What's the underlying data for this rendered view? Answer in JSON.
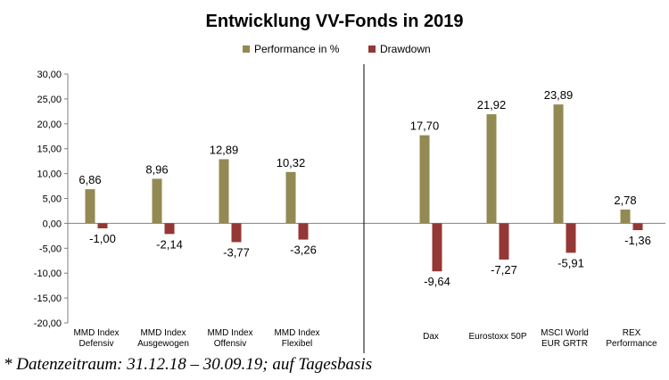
{
  "chart_data": {
    "type": "bar",
    "title": "Entwicklung VV-Fonds in 2019",
    "categories": [
      [
        "MMD Index",
        "Defensiv"
      ],
      [
        "MMD Index",
        "Ausgewogen"
      ],
      [
        "MMD Index",
        "Offensiv"
      ],
      [
        "MMD Index",
        "Flexibel"
      ],
      [
        "Dax"
      ],
      [
        "Eurostoxx 50P"
      ],
      [
        "MSCI World",
        "EUR GRTR"
      ],
      [
        "REX",
        "Performance"
      ]
    ],
    "series": [
      {
        "name": "Performance in %",
        "color": "#938953",
        "values": [
          6.86,
          8.96,
          12.89,
          10.32,
          17.7,
          21.92,
          23.89,
          2.78
        ]
      },
      {
        "name": "Drawdown",
        "color": "#953735",
        "values": [
          -1.0,
          -2.14,
          -3.77,
          -3.26,
          -9.64,
          -7.27,
          -5.91,
          -1.36
        ]
      }
    ],
    "value_labels": [
      [
        "6,86",
        "8,96",
        "12,89",
        "10,32",
        "17,70",
        "21,92",
        "23,89",
        "2,78"
      ],
      [
        "-1,00",
        "-2,14",
        "-3,77",
        "-3,26",
        "-9,64",
        "-7,27",
        "-5,91",
        "-1,36"
      ]
    ],
    "ylim": [
      -20,
      30
    ],
    "yticks": [
      30,
      25,
      20,
      15,
      10,
      5,
      0,
      -5,
      -10,
      -15,
      -20
    ],
    "ytick_labels": [
      "30,00",
      "25,00",
      "20,00",
      "15,00",
      "10,00",
      "5,00",
      "0,00",
      "-5,00",
      "-10,00",
      "-15,00",
      "-20,00"
    ],
    "legend_position": "top-center",
    "grid": false
  },
  "footnote": "* Datenzeitraum: 31.12.18 – 30.09.19; auf Tagesbasis"
}
